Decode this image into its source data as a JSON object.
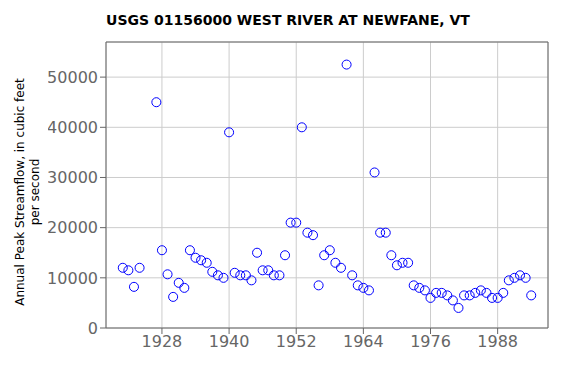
{
  "chart_data": {
    "type": "scatter",
    "title": "USGS 01156000 WEST RIVER AT NEWFANE, VT",
    "ylabel": "Annual Peak Streamflow, in cubic feet\nper second",
    "x": [
      1921,
      1922,
      1923,
      1924,
      1927,
      1928,
      1929,
      1930,
      1931,
      1932,
      1933,
      1934,
      1935,
      1936,
      1937,
      1938,
      1939,
      1940,
      1941,
      1942,
      1943,
      1944,
      1945,
      1946,
      1947,
      1948,
      1949,
      1950,
      1951,
      1952,
      1953,
      1954,
      1955,
      1956,
      1957,
      1958,
      1959,
      1960,
      1961,
      1962,
      1963,
      1964,
      1965,
      1966,
      1967,
      1968,
      1969,
      1970,
      1971,
      1972,
      1973,
      1974,
      1975,
      1976,
      1977,
      1978,
      1979,
      1980,
      1981,
      1982,
      1983,
      1984,
      1985,
      1986,
      1987,
      1988,
      1989,
      1990,
      1991,
      1992,
      1993,
      1994
    ],
    "values": [
      12000,
      11500,
      8200,
      12000,
      45000,
      15500,
      10700,
      6200,
      9000,
      8000,
      15500,
      14000,
      13500,
      13000,
      11200,
      10500,
      10000,
      39000,
      11000,
      10500,
      10500,
      9500,
      15000,
      11500,
      11500,
      10500,
      10500,
      14500,
      21000,
      21000,
      40000,
      19000,
      18500,
      8500,
      14500,
      15500,
      13000,
      12000,
      52500,
      10500,
      8500,
      8000,
      7500,
      31000,
      19000,
      19000,
      14500,
      12500,
      13000,
      13000,
      8500,
      8000,
      7500,
      6000,
      7000,
      7000,
      6500,
      5500,
      4000,
      6500,
      6500,
      7000,
      7500,
      7000,
      6000,
      6000,
      7000,
      9500,
      10000,
      10500,
      10000,
      6500
    ],
    "color": "#0000ff",
    "marker": "circle",
    "xlim": [
      1918,
      1997
    ],
    "ylim": [
      0,
      57000
    ],
    "xticks": [
      1928,
      1940,
      1952,
      1964,
      1976,
      1988
    ],
    "yticks": [
      0,
      10000,
      20000,
      30000,
      40000,
      50000
    ],
    "grid": true
  }
}
